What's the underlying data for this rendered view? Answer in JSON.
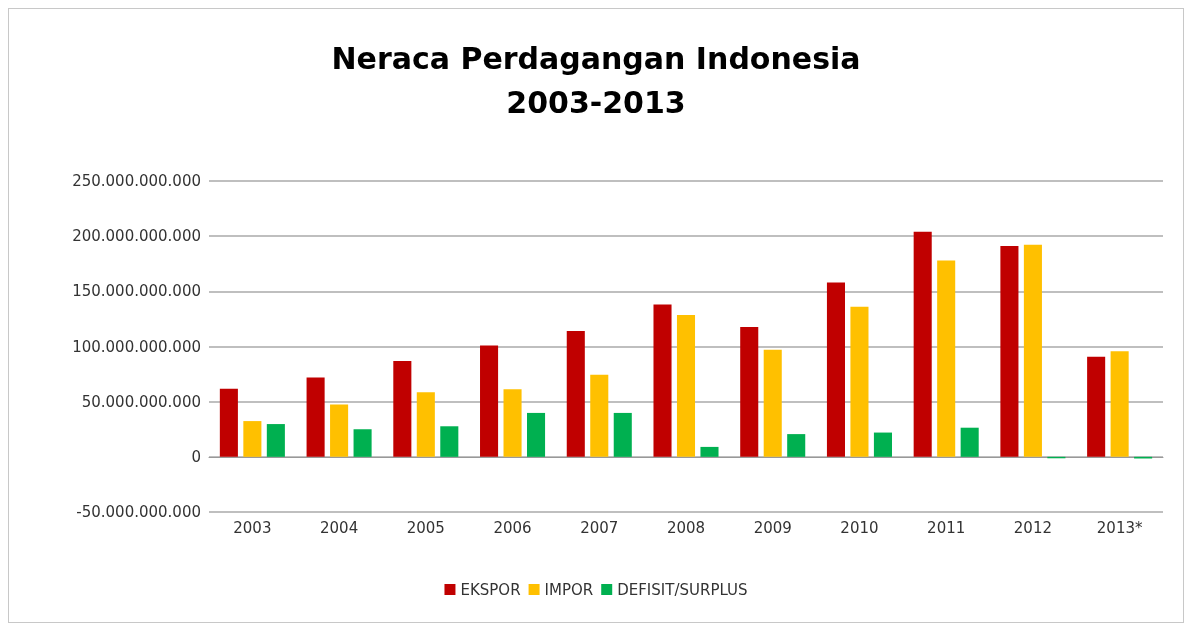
{
  "chart_data": {
    "type": "bar",
    "title": "Neraca Perdagangan Indonesia\n2003-2013",
    "categories": [
      "2003",
      "2004",
      "2005",
      "2006",
      "2007",
      "2008",
      "2009",
      "2010",
      "2011",
      "2012",
      "2013*"
    ],
    "series": [
      {
        "name": "EKSPOR",
        "color": "#c00000",
        "values": [
          61800000000,
          72000000000,
          86800000000,
          101000000000,
          114000000000,
          138000000000,
          117600000000,
          158000000000,
          204000000000,
          191000000000,
          90700000000
        ]
      },
      {
        "name": "IMPOR",
        "color": "#ffc000",
        "values": [
          32400000000,
          47500000000,
          58500000000,
          61300000000,
          74500000000,
          128600000000,
          97000000000,
          136000000000,
          178000000000,
          192300000000,
          95600000000
        ]
      },
      {
        "name": "DEFISIT/SURPLUS",
        "color": "#00b050",
        "values": [
          29700000000,
          25000000000,
          27700000000,
          39800000000,
          39800000000,
          9000000000,
          20600000000,
          22000000000,
          26400000000,
          -1300000000,
          -1500000000
        ]
      }
    ],
    "ylim": [
      -50000000000,
      250000000000
    ],
    "yticks": [
      {
        "value": -50000000000,
        "label": "-50.000.000.000"
      },
      {
        "value": 0,
        "label": "0"
      },
      {
        "value": 50000000000,
        "label": "50.000.000.000"
      },
      {
        "value": 100000000000,
        "label": "100.000.000.000"
      },
      {
        "value": 150000000000,
        "label": "150.000.000.000"
      },
      {
        "value": 200000000000,
        "label": "200.000.000.000"
      },
      {
        "value": 250000000000,
        "label": "250.000.000.000"
      }
    ],
    "grid": "y",
    "legend": "bottom"
  }
}
